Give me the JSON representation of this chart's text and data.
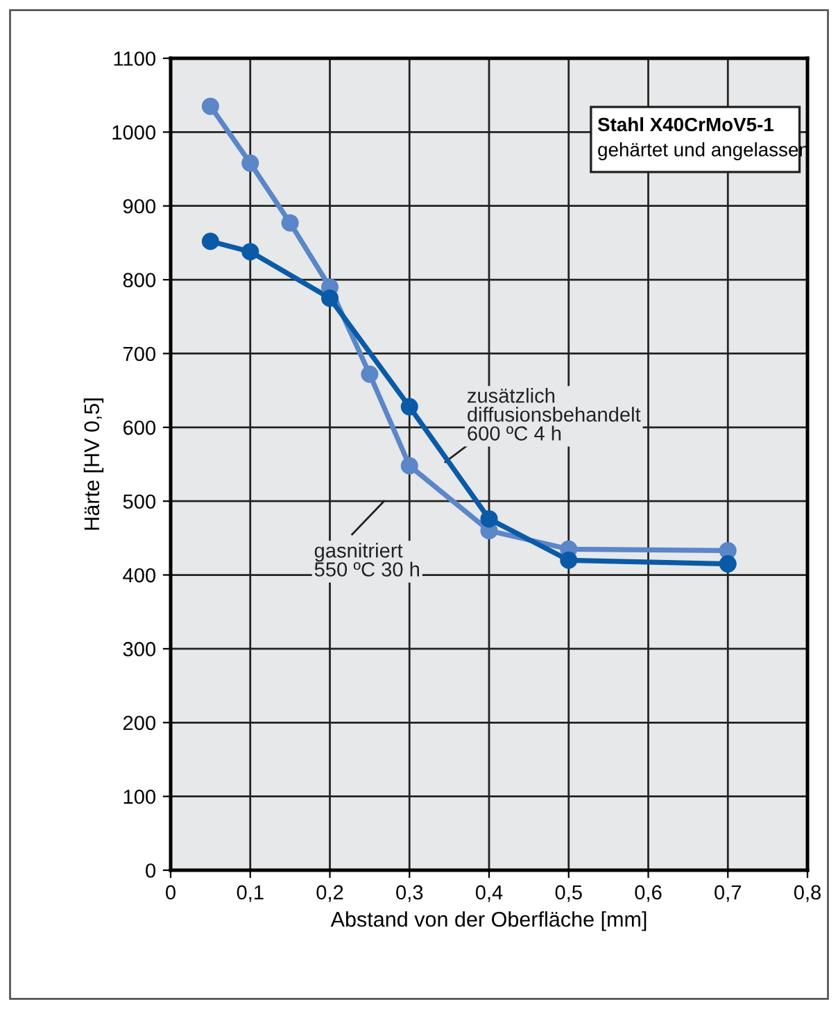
{
  "chart_data": {
    "type": "line",
    "xlabel": "Abstand von der Oberfläche [mm]",
    "ylabel": "Härte [HV 0,5]",
    "annotations": [
      "Stahl X40CrMoV5-1",
      "gehärtet und angelassen"
    ],
    "xlim": [
      0,
      0.8
    ],
    "xticks": [
      {
        "value": 0,
        "label": "0"
      },
      {
        "value": 0.1,
        "label": "0,1"
      },
      {
        "value": 0.2,
        "label": "0,2"
      },
      {
        "value": 0.3,
        "label": "0,3"
      },
      {
        "value": 0.4,
        "label": "0,4"
      },
      {
        "value": 0.5,
        "label": "0,5"
      },
      {
        "value": 0.6,
        "label": "0,6"
      },
      {
        "value": 0.7,
        "label": "0,7"
      },
      {
        "value": 0.8,
        "label": "0,8"
      }
    ],
    "ylim": [
      0,
      1100
    ],
    "yticks": [
      0,
      100,
      200,
      300,
      400,
      500,
      600,
      700,
      800,
      900,
      1000,
      1100
    ],
    "grid": true,
    "legend": false,
    "marker": "circle",
    "line_style": "solid",
    "series": [
      {
        "name": "gasnitriert\n550 ºC 30 h",
        "color": "#5b86c8",
        "x": [
          0.05,
          0.1,
          0.15,
          0.2,
          0.25,
          0.3,
          0.4,
          0.5,
          0.7
        ],
        "values": [
          1035,
          958,
          877,
          790,
          672,
          548,
          460,
          435,
          433
        ]
      },
      {
        "name": "zusätzlich\ndiffusionsbehandelt\n600 ºC 4 h",
        "color": "#0a5aa8",
        "x": [
          0.05,
          0.1,
          0.2,
          0.3,
          0.4,
          0.5,
          0.7
        ],
        "values": [
          852,
          838,
          775,
          628,
          476,
          420,
          415
        ]
      }
    ]
  }
}
